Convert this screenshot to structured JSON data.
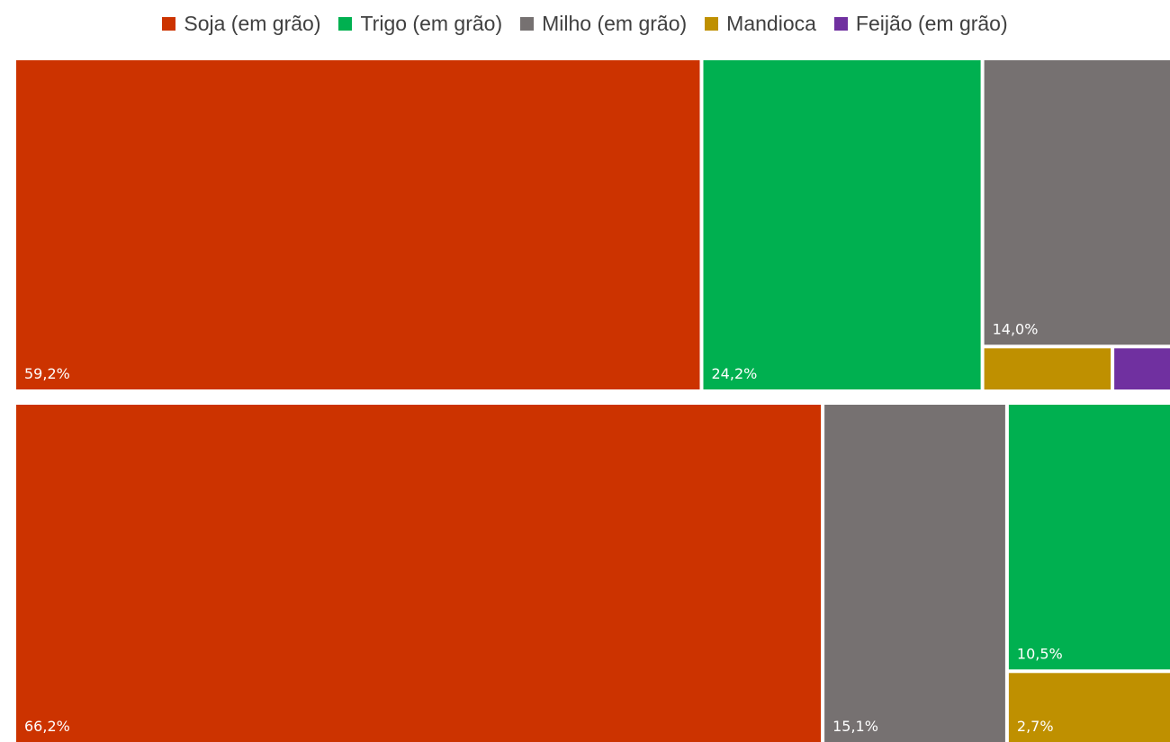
{
  "chart_data": {
    "type": "treemap",
    "legend_position": "top",
    "categories": [
      "Soja (em grão)",
      "Trigo (em grão)",
      "Milho (em grão)",
      "Mandioca",
      "Feijão (em grão)"
    ],
    "colors": {
      "Soja (em grão)": "#CC3300",
      "Trigo (em grão)": "#00B050",
      "Milho (em grão)": "#767171",
      "Mandioca": "#BF9000",
      "Feijão (em grão)": "#7030A0"
    },
    "groups": [
      {
        "items": [
          {
            "category": "Soja (em grão)",
            "value": 59.2,
            "label": "59,2%"
          },
          {
            "category": "Trigo (em grão)",
            "value": 24.2,
            "label": "24,2%"
          },
          {
            "category": "Milho (em grão)",
            "value": 14.0,
            "label": "14,0%"
          },
          {
            "category": "Mandioca",
            "value": 1.4
          },
          {
            "category": "Feijão (em grão)",
            "value": 0.6
          }
        ]
      },
      {
        "items": [
          {
            "category": "Soja (em grão)",
            "value": 66.2,
            "label": "66,2%"
          },
          {
            "category": "Milho (em grão)",
            "value": 15.1,
            "label": "15,1%"
          },
          {
            "category": "Trigo (em grão)",
            "value": 10.5,
            "label": "10,5%"
          },
          {
            "category": "Mandioca",
            "value": 2.7,
            "label": "2,7%"
          }
        ]
      }
    ]
  }
}
